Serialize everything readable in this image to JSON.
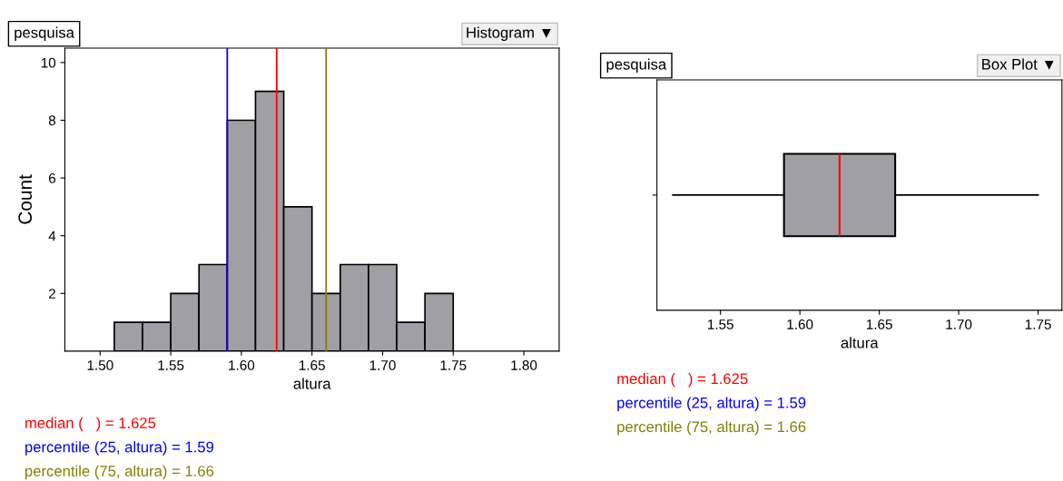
{
  "chart_data": [
    {
      "type": "histogram",
      "title": "pesquisa",
      "xlabel": "altura",
      "ylabel": "Count",
      "bins": [
        1.51,
        1.53,
        1.55,
        1.57,
        1.59,
        1.61,
        1.63,
        1.65,
        1.67,
        1.69,
        1.71,
        1.73,
        1.75
      ],
      "values": [
        1,
        1,
        2,
        3,
        8,
        9,
        5,
        2,
        3,
        3,
        1,
        2
      ],
      "color": "#a09fa4",
      "xlim": [
        1.475,
        1.825
      ],
      "xticks": [
        {
          "value": 1.5,
          "label": "1.50"
        },
        {
          "value": 1.55,
          "label": "1.55"
        },
        {
          "value": 1.6,
          "label": "1.60"
        },
        {
          "value": 1.65,
          "label": "1.65"
        },
        {
          "value": 1.7,
          "label": "1.70"
        },
        {
          "value": 1.75,
          "label": "1.75"
        },
        {
          "value": 1.8,
          "label": "1.80"
        }
      ],
      "ylim": [
        0,
        10.5
      ],
      "yticks": [
        2,
        4,
        6,
        8,
        10
      ],
      "ref_lines": [
        {
          "axis": "x",
          "value": 1.59,
          "color": "#0000ff"
        },
        {
          "axis": "x",
          "value": 1.625,
          "color": "#ff0000"
        },
        {
          "axis": "x",
          "value": 1.66,
          "color": "#808000"
        }
      ],
      "annotations": [
        "Histogram ▼",
        "median (   ) = 1.625",
        "percentile (25, altura) = 1.59",
        "percentile (75, altura) = 1.66"
      ]
    },
    {
      "type": "box",
      "title": "pesquisa",
      "xlabel": "altura",
      "orientation": "horizontal",
      "categories": [
        null
      ],
      "color": "#a09fa4",
      "boxes": [
        {
          "low": 1.52,
          "q1": 1.59,
          "median": 1.625,
          "q3": 1.66,
          "high": 1.75
        }
      ],
      "xlim": [
        1.51,
        1.765
      ],
      "xticks": [
        {
          "value": 1.55,
          "label": "1.55"
        },
        {
          "value": 1.6,
          "label": "1.60"
        },
        {
          "value": 1.65,
          "label": "1.65"
        },
        {
          "value": 1.7,
          "label": "1.70"
        },
        {
          "value": 1.75,
          "label": "1.75"
        }
      ],
      "tick_labels": "x",
      "annotations": [
        "Box Plot ▼",
        "median (   ) = 1.625",
        "percentile (25, altura) = 1.59",
        "percentile (75, altura) = 1.66"
      ]
    }
  ]
}
